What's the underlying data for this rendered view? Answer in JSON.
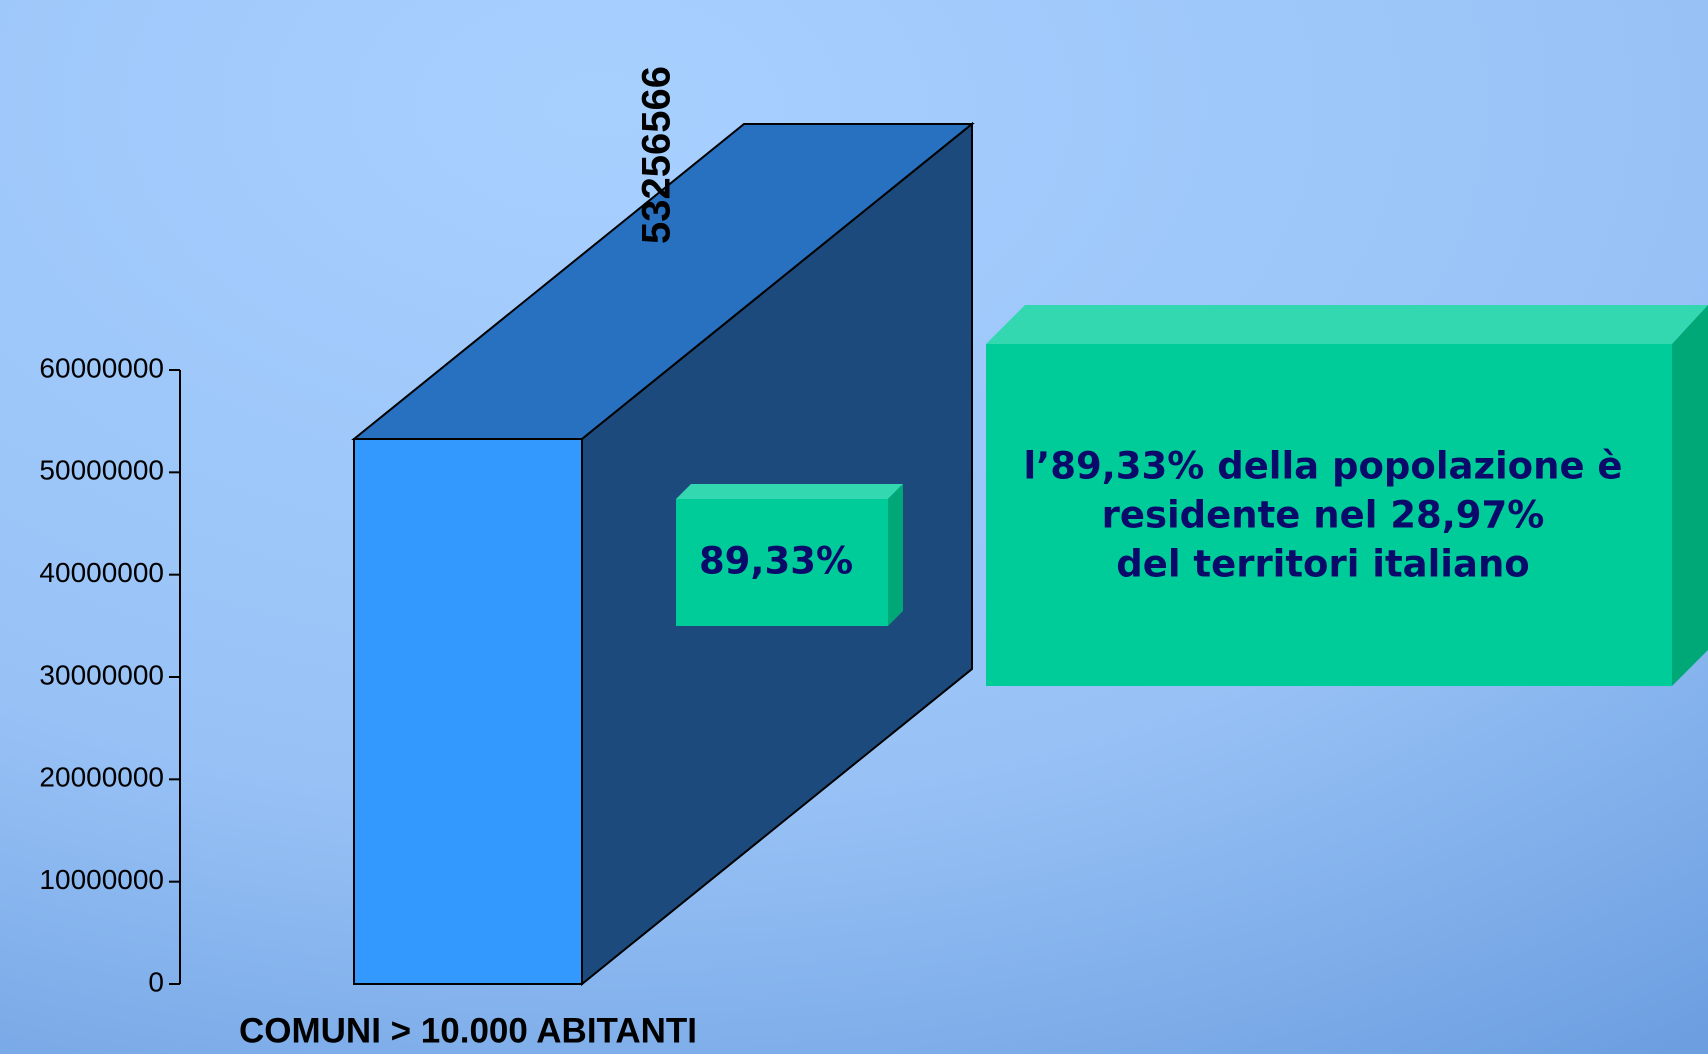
{
  "chart_data": {
    "type": "bar",
    "categories": [
      "COMUNI > 10.000 ABITANTI"
    ],
    "values": [
      53256566
    ],
    "color": "#3399ff",
    "ylim": [
      0,
      60000000
    ],
    "yticks": [
      0,
      10000000,
      20000000,
      30000000,
      40000000,
      50000000,
      60000000
    ],
    "grid": false,
    "annotations": [
      "89,33%",
      "l’89,33% della popolazione è",
      "residente nel 28,97%",
      "del territori italiano"
    ]
  }
}
